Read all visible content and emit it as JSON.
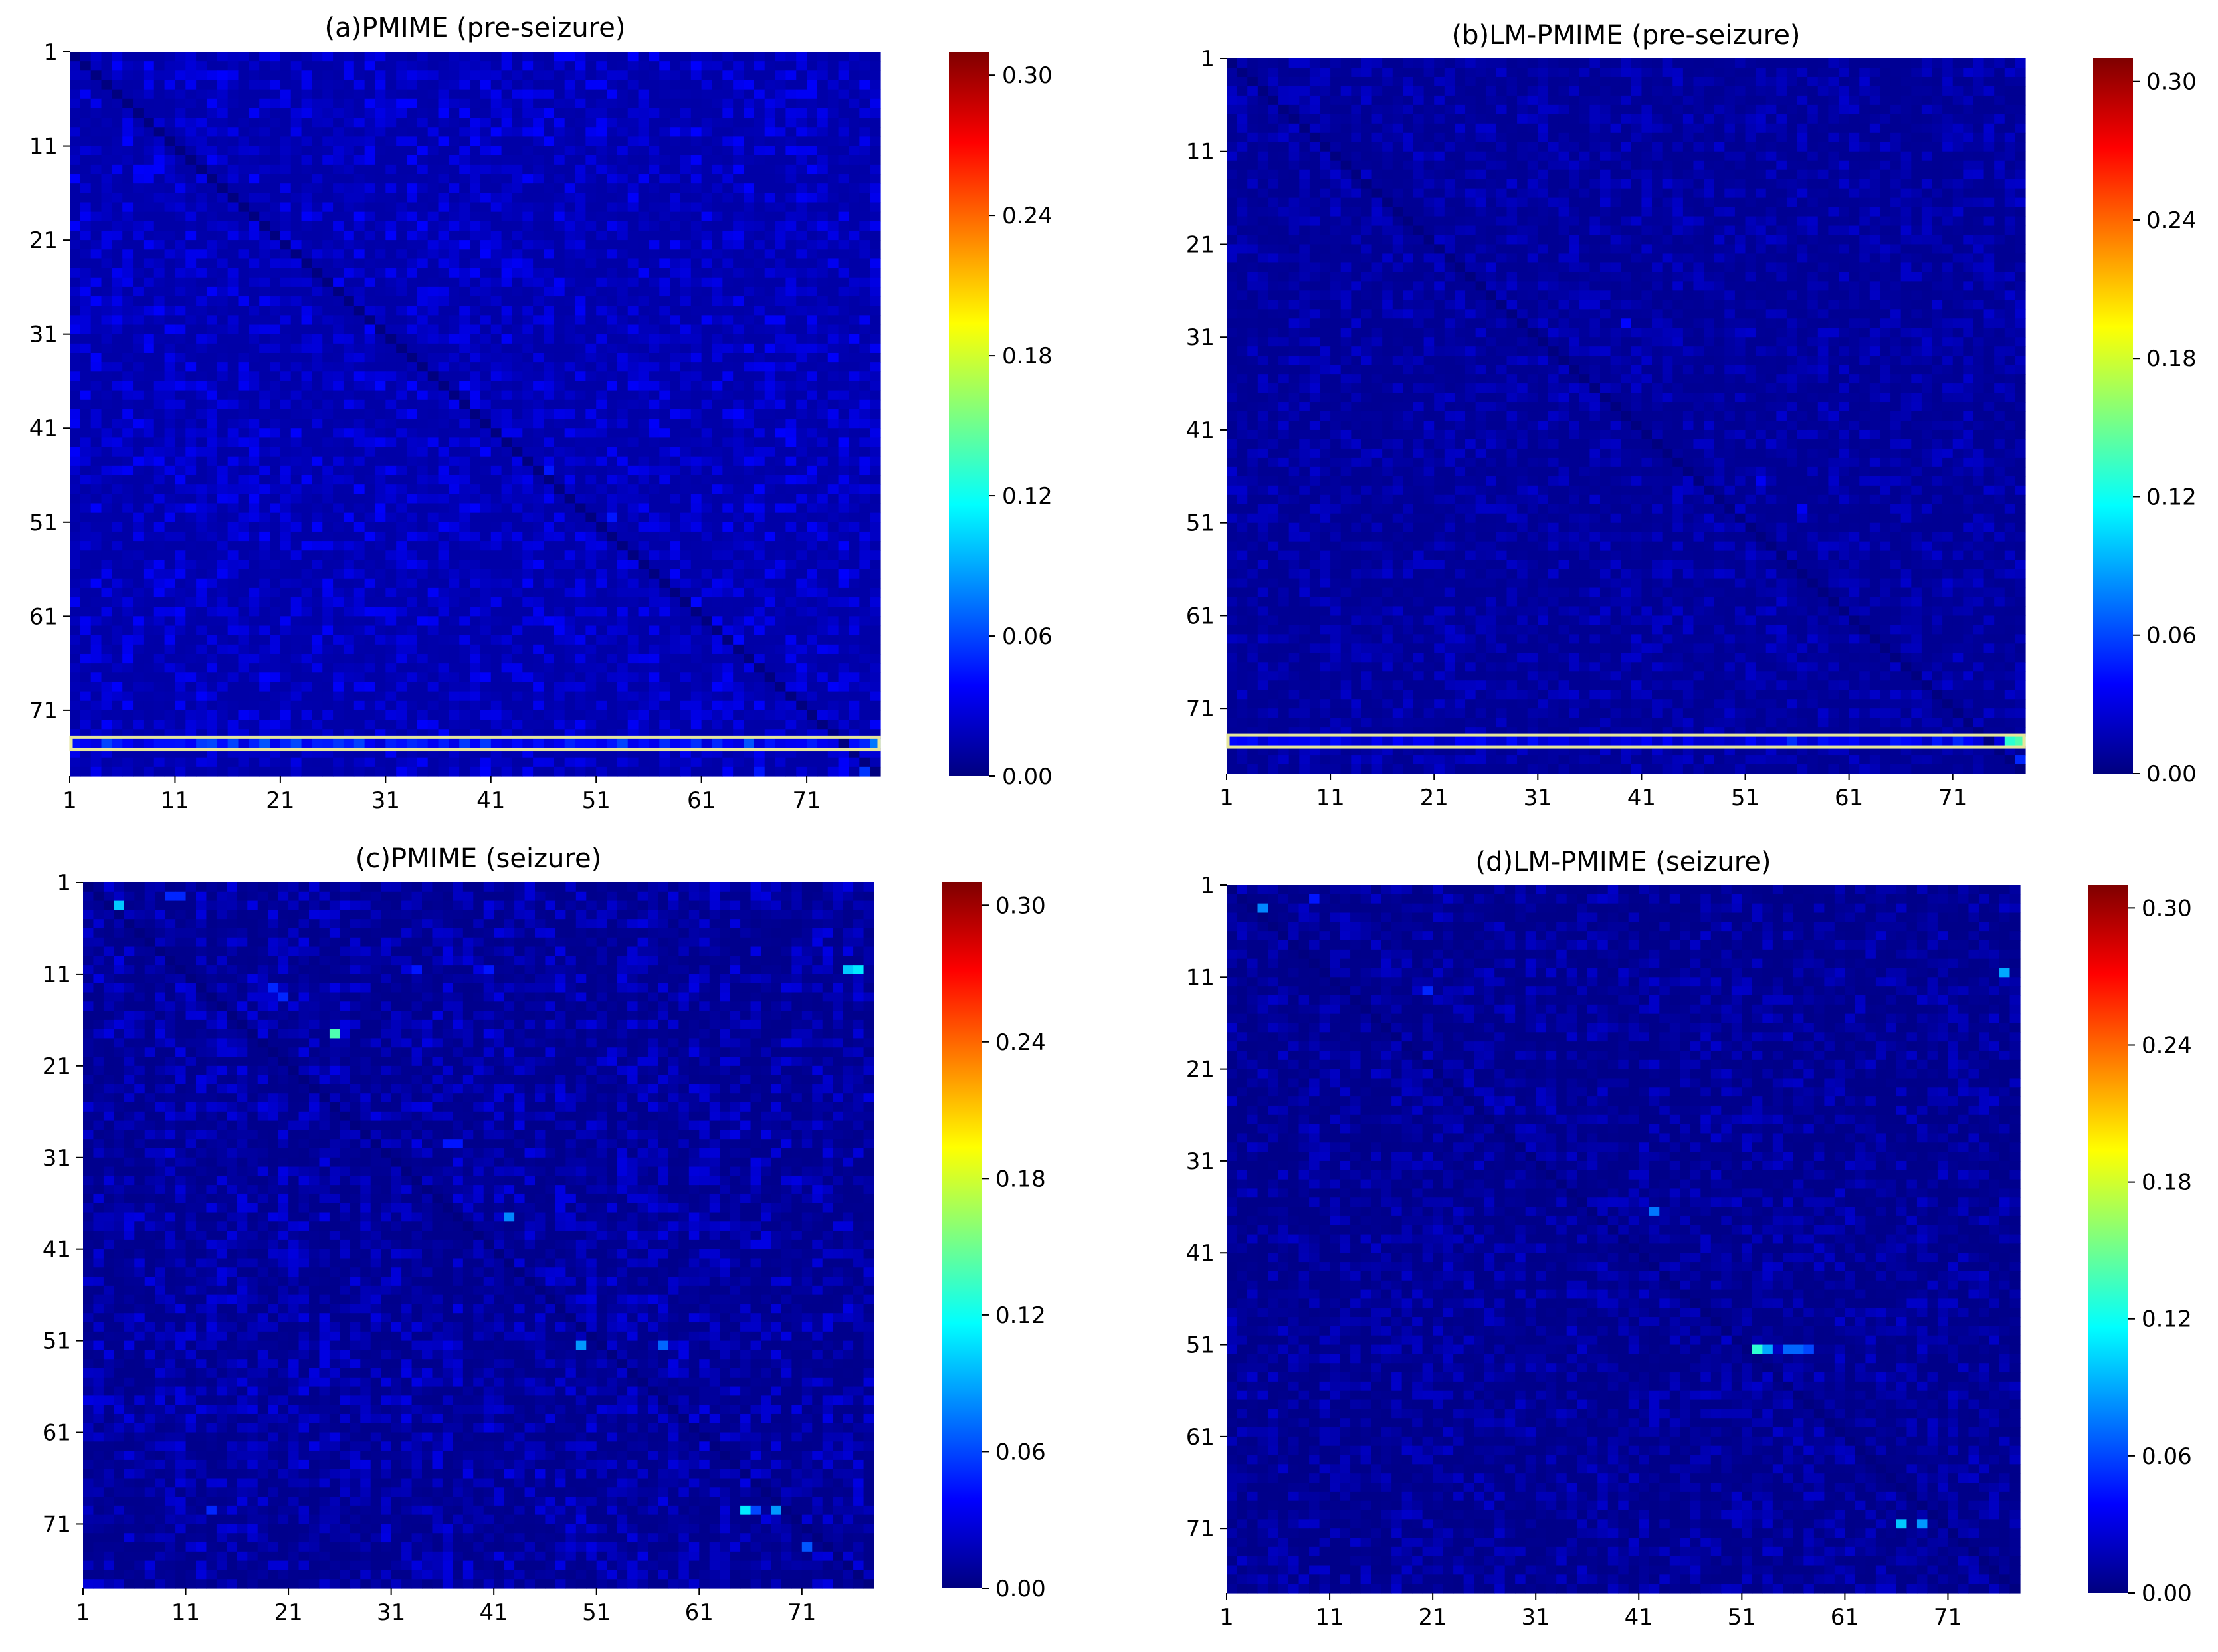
{
  "colormap": {
    "name": "jet",
    "stops": [
      "#00007f",
      "#0000ff",
      "#007fff",
      "#00ffff",
      "#7fff7f",
      "#ffff00",
      "#ff7f00",
      "#ff0000",
      "#7f0000"
    ]
  },
  "highlight_color": "#e6e69a",
  "chart_data": [
    {
      "type": "heatmap",
      "title": "(a)PMIME (pre-seizure)",
      "n": 77,
      "xticks": [
        "1",
        "11",
        "21",
        "31",
        "41",
        "51",
        "61",
        "71"
      ],
      "yticks": [
        "1",
        "11",
        "21",
        "31",
        "41",
        "51",
        "61",
        "71"
      ],
      "colorbar": {
        "min": 0.0,
        "max": 0.31,
        "ticks": [
          "0.00",
          "0.06",
          "0.12",
          "0.18",
          "0.24",
          "0.30"
        ]
      },
      "background_level": 0.012,
      "noise_level": 0.012,
      "highlight_rows": [
        74
      ],
      "hot_cells": [
        {
          "row": 74,
          "col": 77,
          "value": 0.075
        },
        {
          "row": 74,
          "col": 76,
          "value": 0.05
        },
        {
          "row": 77,
          "col": 76,
          "value": 0.055
        },
        {
          "row": 45,
          "col": 46,
          "value": 0.045
        },
        {
          "row": 50,
          "col": 52,
          "value": 0.045
        },
        {
          "row": 59,
          "col": 60,
          "value": 0.04
        },
        {
          "row": 63,
          "col": 64,
          "value": 0.04
        },
        {
          "row": 36,
          "col": 30,
          "value": 0.04
        },
        {
          "row": 36,
          "col": 38,
          "value": 0.04
        },
        {
          "row": 77,
          "col": 66,
          "value": 0.045
        }
      ]
    },
    {
      "type": "heatmap",
      "title": "(b)LM-PMIME (pre-seizure)",
      "n": 77,
      "xticks": [
        "1",
        "11",
        "21",
        "31",
        "41",
        "51",
        "61",
        "71"
      ],
      "yticks": [
        "1",
        "11",
        "21",
        "31",
        "41",
        "51",
        "61",
        "71"
      ],
      "colorbar": {
        "min": 0.0,
        "max": 0.31,
        "ticks": [
          "0.00",
          "0.06",
          "0.12",
          "0.18",
          "0.24",
          "0.30"
        ]
      },
      "background_level": 0.006,
      "noise_level": 0.008,
      "highlight_rows": [
        74
      ],
      "hot_cells": [
        {
          "row": 74,
          "col": 77,
          "value": 0.14
        },
        {
          "row": 74,
          "col": 76,
          "value": 0.13
        },
        {
          "row": 74,
          "col": 71,
          "value": 0.05
        },
        {
          "row": 74,
          "col": 65,
          "value": 0.045
        },
        {
          "row": 29,
          "col": 39,
          "value": 0.04
        },
        {
          "row": 49,
          "col": 56,
          "value": 0.035
        },
        {
          "row": 46,
          "col": 52,
          "value": 0.035
        },
        {
          "row": 76,
          "col": 77,
          "value": 0.05
        }
      ]
    },
    {
      "type": "heatmap",
      "title": "(c)PMIME (seizure)",
      "n": 77,
      "xticks": [
        "1",
        "11",
        "21",
        "31",
        "41",
        "51",
        "61",
        "71"
      ],
      "yticks": [
        "1",
        "11",
        "21",
        "31",
        "41",
        "51",
        "61",
        "71"
      ],
      "colorbar": {
        "min": 0.0,
        "max": 0.31,
        "ticks": [
          "0.00",
          "0.06",
          "0.12",
          "0.18",
          "0.24",
          "0.30"
        ]
      },
      "background_level": 0.004,
      "noise_level": 0.012,
      "highlight_rows": [],
      "hot_cells": [
        {
          "row": 3,
          "col": 4,
          "value": 0.1
        },
        {
          "row": 10,
          "col": 75,
          "value": 0.1
        },
        {
          "row": 10,
          "col": 76,
          "value": 0.11
        },
        {
          "row": 17,
          "col": 25,
          "value": 0.14
        },
        {
          "row": 51,
          "col": 49,
          "value": 0.085
        },
        {
          "row": 51,
          "col": 51,
          "value": 0.085
        },
        {
          "row": 51,
          "col": 57,
          "value": 0.07
        },
        {
          "row": 37,
          "col": 42,
          "value": 0.08
        },
        {
          "row": 69,
          "col": 65,
          "value": 0.11
        },
        {
          "row": 69,
          "col": 68,
          "value": 0.085
        },
        {
          "row": 69,
          "col": 66,
          "value": 0.06
        },
        {
          "row": 73,
          "col": 71,
          "value": 0.065
        },
        {
          "row": 12,
          "col": 19,
          "value": 0.05
        },
        {
          "row": 13,
          "col": 20,
          "value": 0.05
        },
        {
          "row": 2,
          "col": 9,
          "value": 0.05
        },
        {
          "row": 2,
          "col": 10,
          "value": 0.05
        },
        {
          "row": 29,
          "col": 36,
          "value": 0.045
        },
        {
          "row": 29,
          "col": 37,
          "value": 0.045
        },
        {
          "row": 10,
          "col": 33,
          "value": 0.045
        },
        {
          "row": 10,
          "col": 40,
          "value": 0.045
        },
        {
          "row": 69,
          "col": 13,
          "value": 0.05
        }
      ]
    },
    {
      "type": "heatmap",
      "title": "(d)LM-PMIME (seizure)",
      "n": 77,
      "xticks": [
        "1",
        "11",
        "21",
        "31",
        "41",
        "51",
        "61",
        "71"
      ],
      "yticks": [
        "1",
        "11",
        "21",
        "31",
        "41",
        "51",
        "61",
        "71"
      ],
      "colorbar": {
        "min": 0.0,
        "max": 0.31,
        "ticks": [
          "0.00",
          "0.06",
          "0.12",
          "0.18",
          "0.24",
          "0.30"
        ]
      },
      "background_level": 0.003,
      "noise_level": 0.009,
      "highlight_rows": [],
      "hot_cells": [
        {
          "row": 3,
          "col": 4,
          "value": 0.08
        },
        {
          "row": 10,
          "col": 76,
          "value": 0.09
        },
        {
          "row": 51,
          "col": 52,
          "value": 0.13
        },
        {
          "row": 51,
          "col": 53,
          "value": 0.09
        },
        {
          "row": 51,
          "col": 55,
          "value": 0.07
        },
        {
          "row": 51,
          "col": 56,
          "value": 0.07
        },
        {
          "row": 51,
          "col": 57,
          "value": 0.06
        },
        {
          "row": 70,
          "col": 66,
          "value": 0.1
        },
        {
          "row": 70,
          "col": 68,
          "value": 0.085
        },
        {
          "row": 69,
          "col": 69,
          "value": 0.1
        },
        {
          "row": 36,
          "col": 42,
          "value": 0.075
        },
        {
          "row": 12,
          "col": 20,
          "value": 0.05
        },
        {
          "row": 2,
          "col": 9,
          "value": 0.045
        },
        {
          "row": 72,
          "col": 72,
          "value": 0.045
        }
      ]
    }
  ]
}
